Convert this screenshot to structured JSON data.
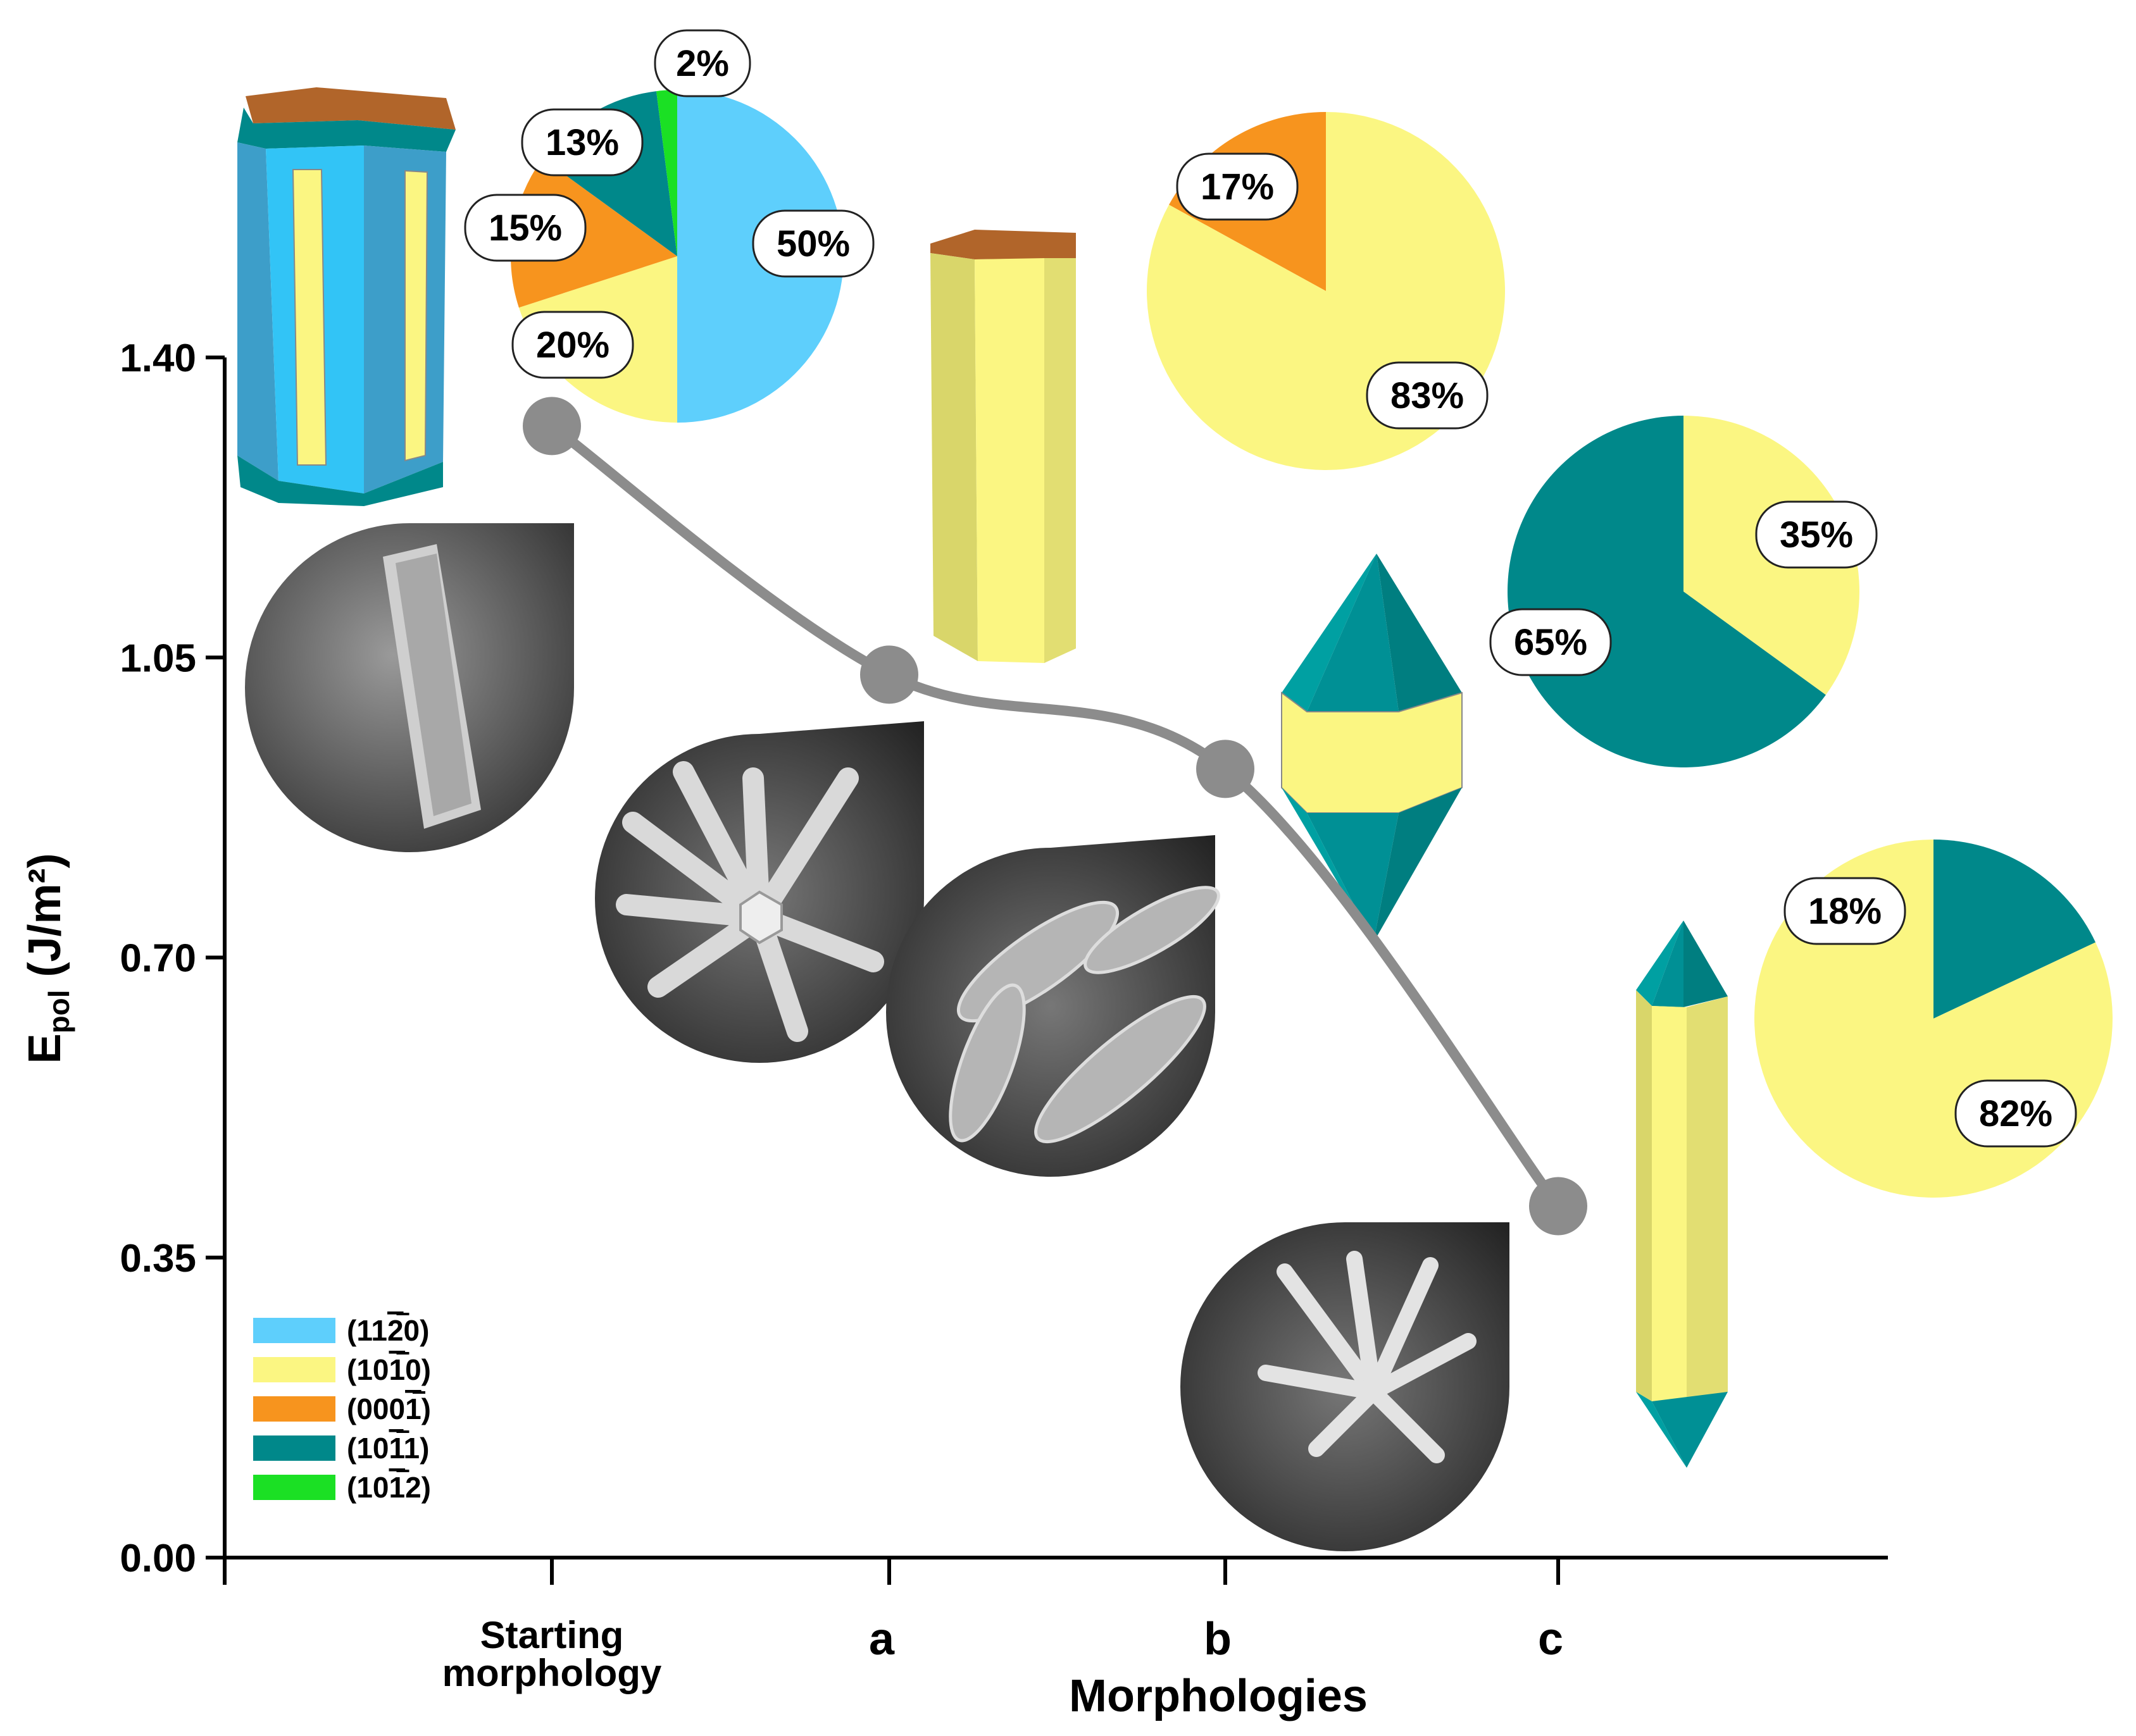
{
  "chart_data": {
    "type": "line",
    "title": "",
    "ylabel_main": "E",
    "ylabel_sub": "pol",
    "ylabel_unit": " (J/m²)",
    "xlabel": "Morphologies",
    "ylim": [
      0,
      1.4
    ],
    "yticks": [
      "0.00",
      "0.35",
      "0.70",
      "1.05",
      "1.40"
    ],
    "categories": [
      "Starting morphology",
      "a",
      "b",
      "c"
    ],
    "category_lines": [
      [
        "Starting",
        "morphology"
      ],
      [
        "a"
      ],
      [
        "b"
      ],
      [
        "c"
      ]
    ],
    "series": [
      {
        "name": "E_pol",
        "values": [
          1.32,
          1.03,
          0.92,
          0.41
        ],
        "color": "#8c8c8c"
      }
    ],
    "pies": [
      {
        "morphology": "Starting morphology",
        "slices": [
          {
            "facet": "(11-20)",
            "value": 50,
            "label": "50%"
          },
          {
            "facet": "(10-10)",
            "value": 20,
            "label": "20%"
          },
          {
            "facet": "(000-1)",
            "value": 15,
            "label": "15%"
          },
          {
            "facet": "(10-11)",
            "value": 13,
            "label": "13%"
          },
          {
            "facet": "(10-12)",
            "value": 2,
            "label": "2%"
          }
        ]
      },
      {
        "morphology": "a",
        "slices": [
          {
            "facet": "(10-10)",
            "value": 83,
            "label": "83%"
          },
          {
            "facet": "(000-1)",
            "value": 17,
            "label": "17%"
          }
        ]
      },
      {
        "morphology": "b",
        "slices": [
          {
            "facet": "(10-10)",
            "value": 35,
            "label": "35%"
          },
          {
            "facet": "(10-11)",
            "value": 65,
            "label": "65%"
          }
        ]
      },
      {
        "morphology": "c",
        "slices": [
          {
            "facet": "(10-10)",
            "value": 82,
            "label": "82%"
          },
          {
            "facet": "(10-11)",
            "value": 18,
            "label": "18%"
          }
        ]
      }
    ],
    "legend": {
      "position": "bottom-left",
      "entries": [
        {
          "facet": "(11-20)",
          "label": "(11",
          "bar": "2",
          "end": "0)",
          "color": "#5ecffc"
        },
        {
          "facet": "(10-10)",
          "label": "(10",
          "bar": "1",
          "end": "0)",
          "color": "#fbf682"
        },
        {
          "facet": "(000-1)",
          "label": "(000",
          "bar": "1",
          "end": ")",
          "color": "#f7941e"
        },
        {
          "facet": "(10-11)",
          "label": "(10",
          "bar": "1",
          "end": "1)",
          "color": "#00888a"
        },
        {
          "facet": "(10-12)",
          "label": "(10",
          "bar": "1",
          "end": "2)",
          "color": "#1be024"
        }
      ]
    },
    "images": {
      "sem_micrographs": [
        "Starting morphology",
        "a",
        "b",
        "c"
      ],
      "crystal_models": [
        "Starting morphology",
        "a",
        "b",
        "c"
      ]
    }
  }
}
